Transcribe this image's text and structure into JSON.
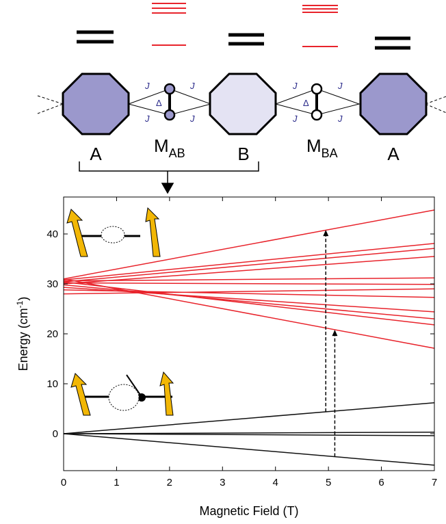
{
  "diagram": {
    "labels": [
      "A",
      "B",
      "A"
    ],
    "bridge_labels": [
      {
        "main": "M",
        "sub": "AB"
      },
      {
        "main": "M",
        "sub": "BA"
      }
    ],
    "coupling": "J",
    "gap": "Δ"
  },
  "chart_data": {
    "type": "line",
    "x_label": "Magnetic Field (T)",
    "y_label": {
      "main": "Energy (cm",
      "sup": "-1",
      "end": ")"
    },
    "xlim": [
      0,
      7
    ],
    "ylim": [
      -7.4,
      47.4
    ],
    "xticks": [
      0,
      1,
      2,
      3,
      4,
      5,
      6,
      7
    ],
    "yticks": [
      0,
      10,
      20,
      30,
      40
    ],
    "x": [
      0,
      7
    ],
    "series": [
      {
        "color": "#e8232b",
        "values": [
          31.0,
          44.8
        ]
      },
      {
        "color": "#e8232b",
        "values": [
          30.8,
          38.1
        ]
      },
      {
        "color": "#e8232b",
        "values": [
          30.4,
          37.1
        ]
      },
      {
        "color": "#e8232b",
        "values": [
          30.0,
          35.5
        ]
      },
      {
        "color": "#e8232b",
        "values": [
          30.6,
          31.2
        ]
      },
      {
        "color": "#e8232b",
        "values": [
          30.2,
          29.9
        ]
      },
      {
        "color": "#e8232b",
        "values": [
          28.0,
          29.0
        ]
      },
      {
        "color": "#e8232b",
        "values": [
          28.8,
          27.3
        ]
      },
      {
        "color": "#e8232b",
        "values": [
          29.3,
          24.4
        ]
      },
      {
        "color": "#e8232b",
        "values": [
          29.8,
          23.0
        ]
      },
      {
        "color": "#e8232b",
        "values": [
          30.4,
          21.8
        ]
      },
      {
        "color": "#e8232b",
        "values": [
          31.0,
          17.1
        ]
      },
      {
        "color": "#111111",
        "values": [
          0,
          6.2
        ]
      },
      {
        "color": "#111111",
        "values": [
          0,
          0.3
        ]
      },
      {
        "color": "#111111",
        "values": [
          0,
          -0.4
        ]
      },
      {
        "color": "#111111",
        "values": [
          0,
          -6.3
        ]
      }
    ],
    "arrows": [
      {
        "x": 4.95,
        "from": 4.4,
        "to": 40.8
      },
      {
        "x": 5.12,
        "from": -4.6,
        "to": 20.8
      }
    ]
  }
}
